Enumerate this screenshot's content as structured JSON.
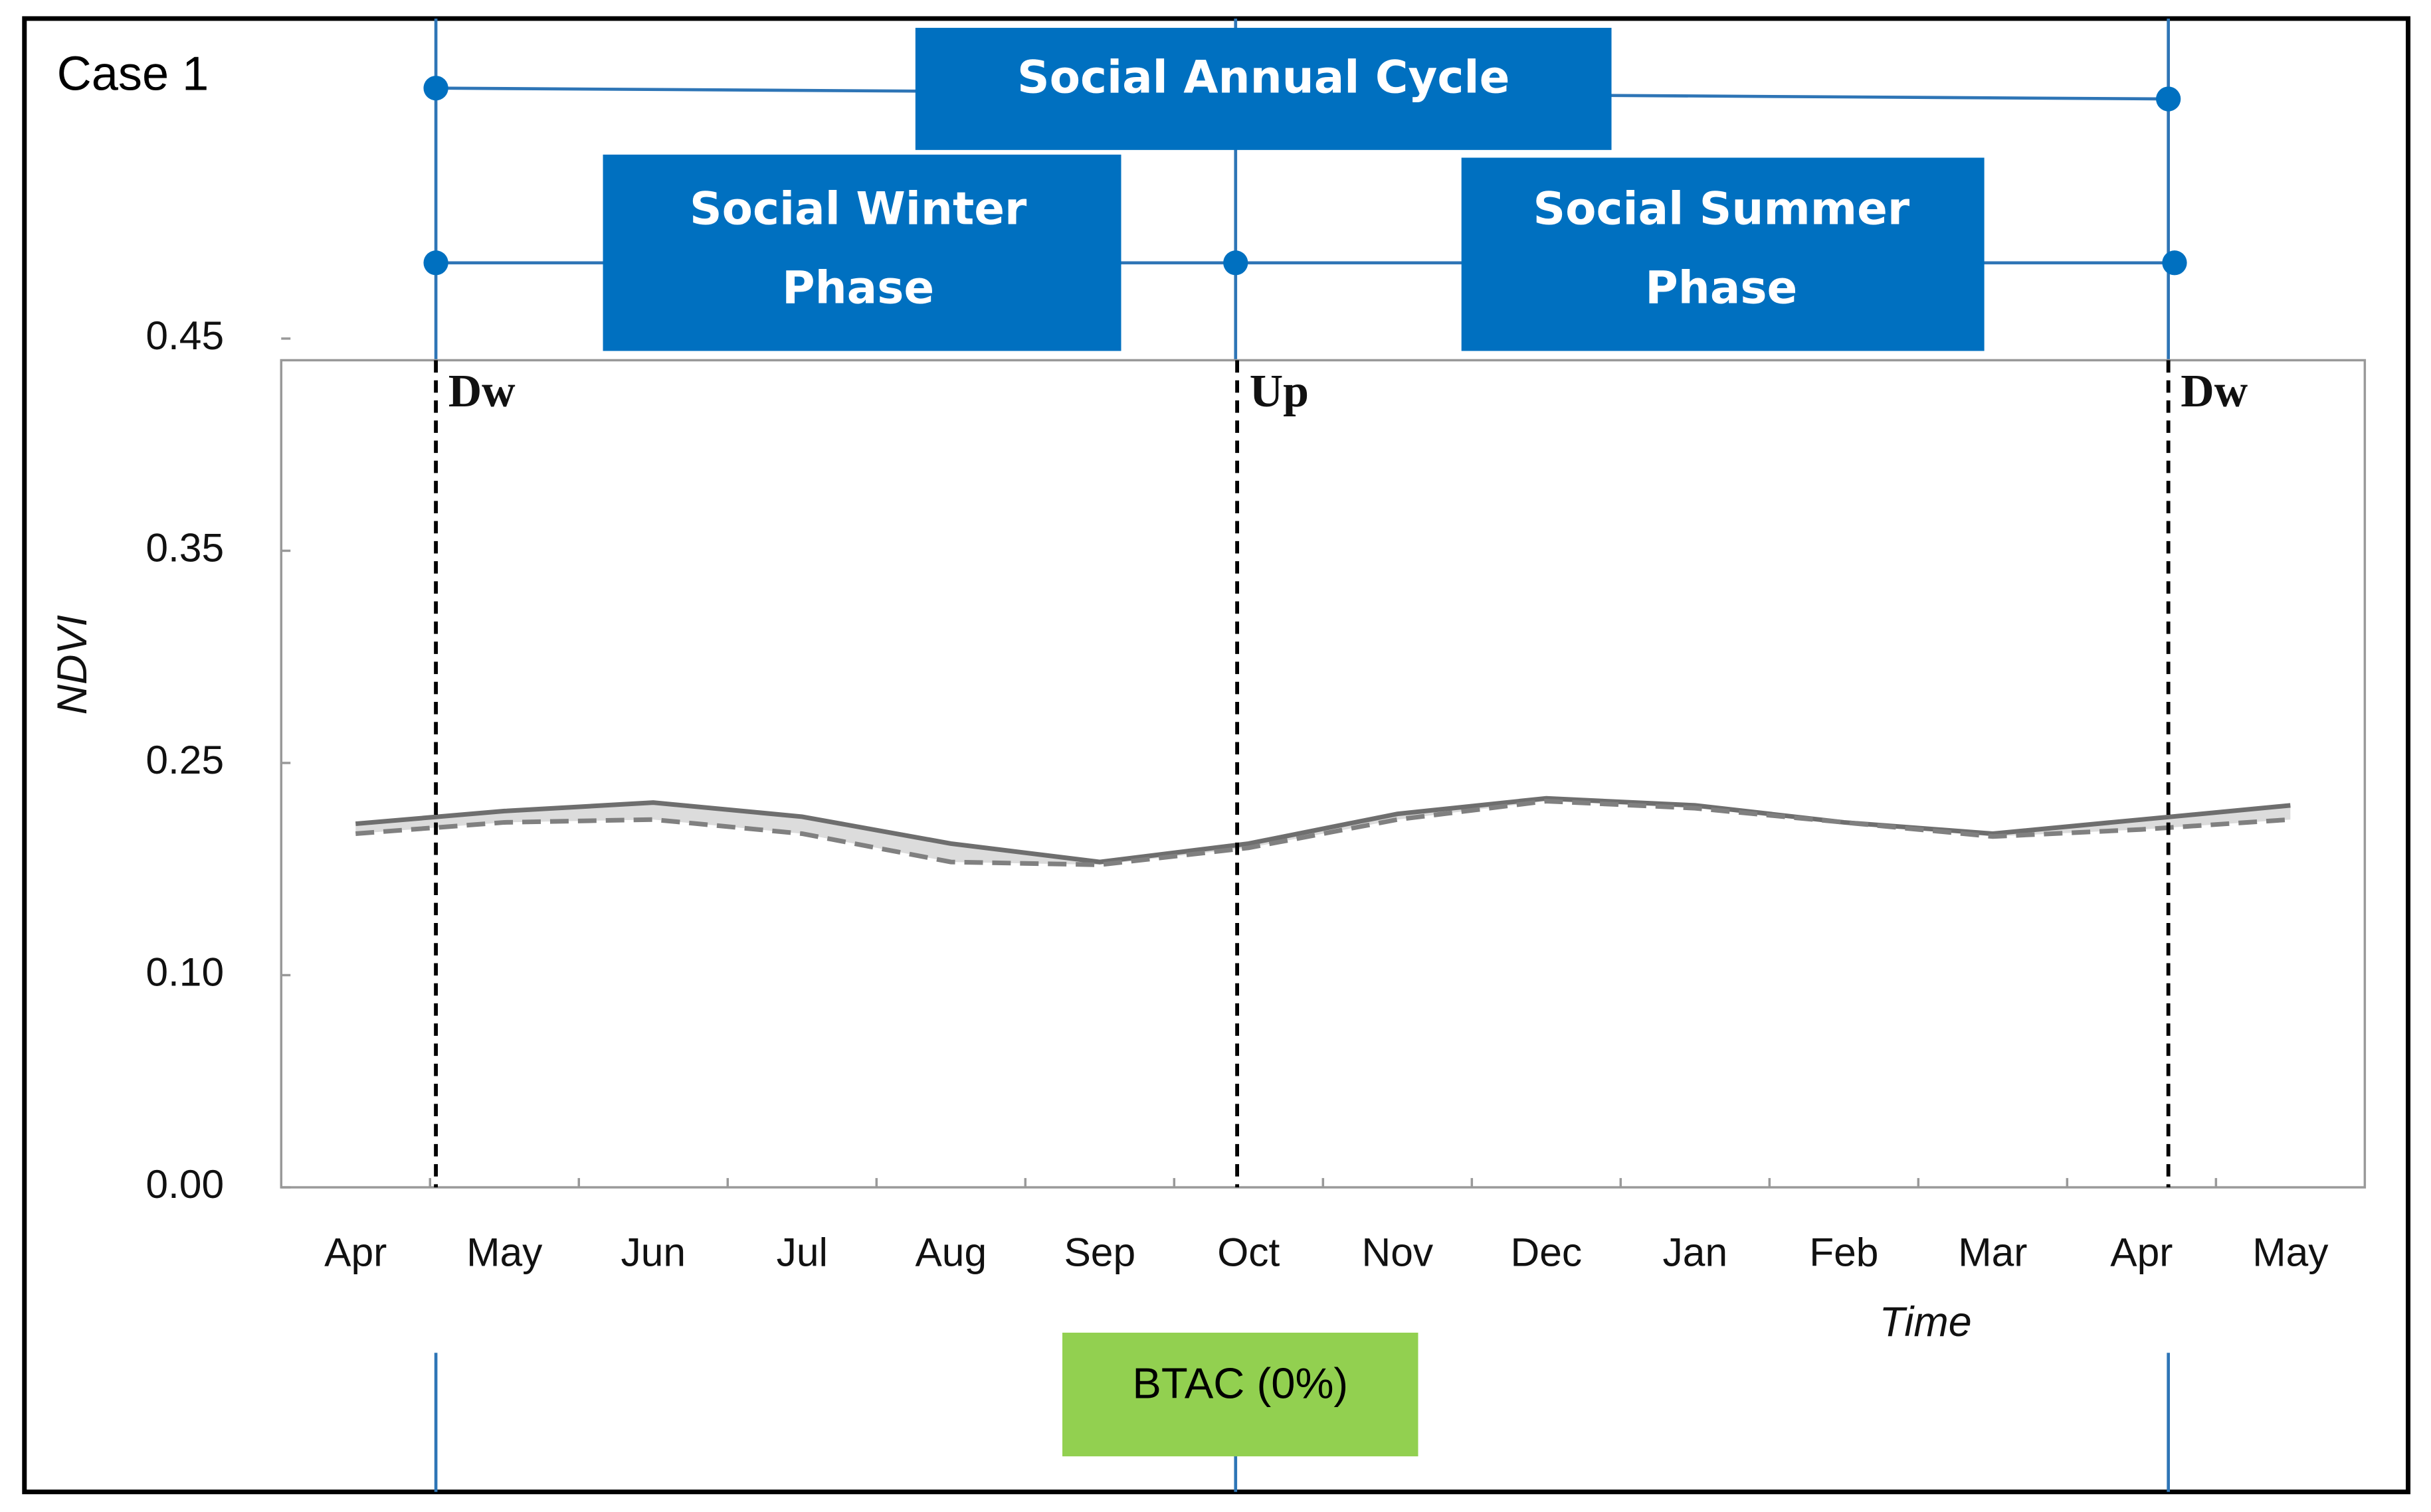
{
  "chart_data": {
    "type": "line",
    "case_label": "Case 1",
    "y_label": "NDVI",
    "x_label": "Time",
    "categories": [
      "Apr",
      "May",
      "Jun",
      "Jul",
      "Aug",
      "Sep",
      "Oct",
      "Nov",
      "Dec",
      "Jan",
      "Feb",
      "Mar",
      "Apr",
      "May"
    ],
    "series": [
      {
        "color": "#6e6e6e",
        "style": "solid",
        "values": [
          0.207,
          0.216,
          0.222,
          0.212,
          0.193,
          0.18,
          0.193,
          0.214,
          0.225,
          0.22,
          0.208,
          0.2,
          0.21,
          0.22
        ]
      },
      {
        "color": "#808080",
        "style": "dashed",
        "values": [
          0.2,
          0.208,
          0.21,
          0.2,
          0.18,
          0.178,
          0.19,
          0.21,
          0.223,
          0.218,
          0.208,
          0.198,
          0.203,
          0.21
        ]
      }
    ],
    "band_color": "#dcdcdc",
    "ylim": [
      0,
      0.45
    ],
    "yticks": [
      {
        "value": 0,
        "label": "0.00"
      },
      {
        "value": 0.1,
        "label": "0.10"
      },
      {
        "value": 0.25,
        "label": "0.25"
      },
      {
        "value": 0.35,
        "label": "0.35"
      },
      {
        "value": 0.45,
        "label": "0.45"
      }
    ],
    "events": [
      "Dw",
      "Up",
      "Dw"
    ],
    "cycle_label": "Social Annual Cycle",
    "winter_label": [
      "Social Winter",
      "Phase"
    ],
    "summer_label": [
      "Social Summer",
      "Phase"
    ],
    "scenario_label": "BTAC (0%)"
  }
}
